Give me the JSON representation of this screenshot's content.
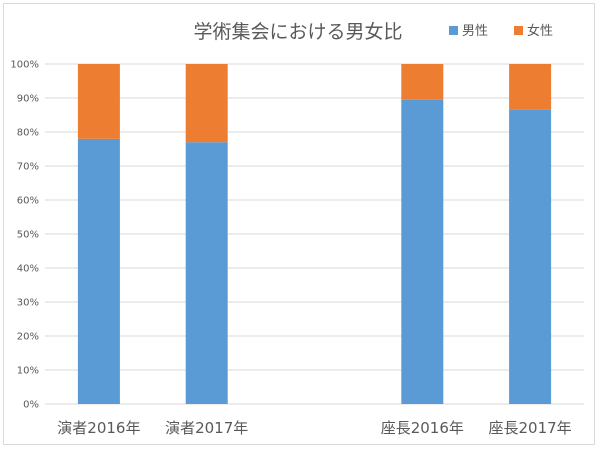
{
  "chart_data": {
    "type": "bar",
    "stacked": true,
    "title": "学術集会における男女比",
    "categories": [
      "演者2016年",
      "演者2017年",
      "",
      "座長2016年",
      "座長2017年"
    ],
    "series": [
      {
        "name": "男性",
        "color": "#5b9bd5",
        "values": [
          78,
          77,
          null,
          89.5,
          86.5
        ]
      },
      {
        "name": "女性",
        "color": "#ed7d31",
        "values": [
          22,
          23,
          null,
          10.5,
          13.5
        ]
      }
    ],
    "ylim": [
      0,
      100
    ],
    "yticks": [
      "0%",
      "10%",
      "20%",
      "30%",
      "40%",
      "50%",
      "60%",
      "70%",
      "80%",
      "90%",
      "100%"
    ],
    "grid": true,
    "legend_position": "top-right"
  }
}
